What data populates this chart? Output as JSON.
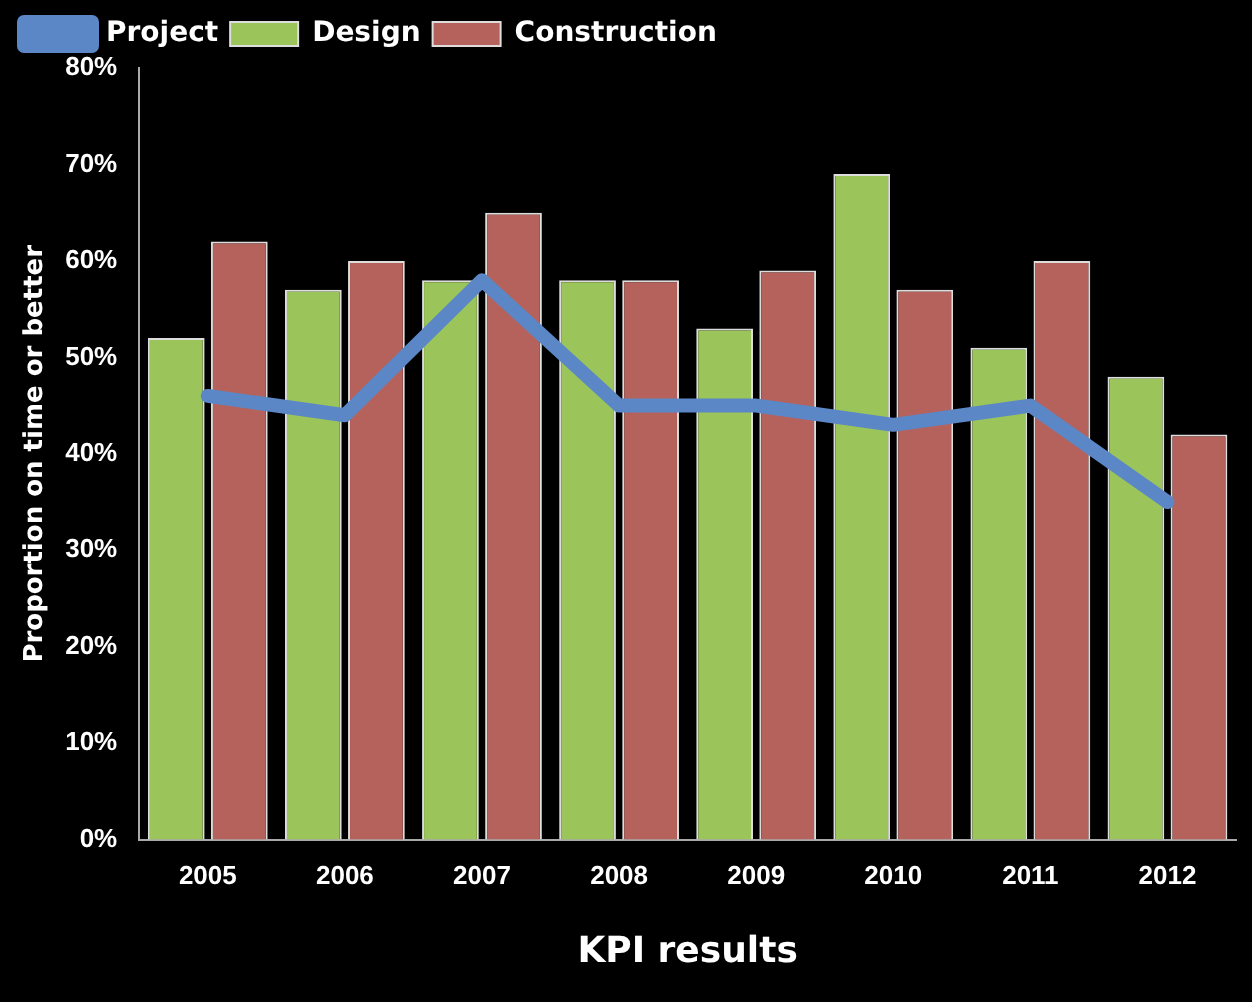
{
  "chart_data": {
    "type": "bar",
    "xlabel": "KPI results",
    "ylabel": "Proportion on time or better",
    "categories": [
      "2005",
      "2006",
      "2007",
      "2008",
      "2009",
      "2010",
      "2011",
      "2012"
    ],
    "series": [
      {
        "name": "Design",
        "color": "#9bc45a",
        "values": [
          52,
          57,
          58,
          58,
          53,
          69,
          51,
          48
        ]
      },
      {
        "name": "Construction",
        "color": "#b5625c",
        "values": [
          62,
          60,
          65,
          58,
          59,
          57,
          60,
          42
        ]
      },
      {
        "name": "Project",
        "type": "line",
        "color": "#5b87c7",
        "values": [
          46,
          44,
          58,
          45,
          45,
          43,
          45,
          35
        ]
      }
    ],
    "ylim": [
      0,
      80
    ],
    "yticks": [
      {
        "value": 0,
        "label": "0%"
      },
      {
        "value": 10,
        "label": "10%"
      },
      {
        "value": 20,
        "label": "20%"
      },
      {
        "value": 30,
        "label": "30%"
      },
      {
        "value": 40,
        "label": "40%"
      },
      {
        "value": 50,
        "label": "50%"
      },
      {
        "value": 60,
        "label": "60%"
      },
      {
        "value": 70,
        "label": "70%"
      },
      {
        "value": 80,
        "label": "80%"
      }
    ],
    "grid": false,
    "legend": "top",
    "marker": "none"
  }
}
